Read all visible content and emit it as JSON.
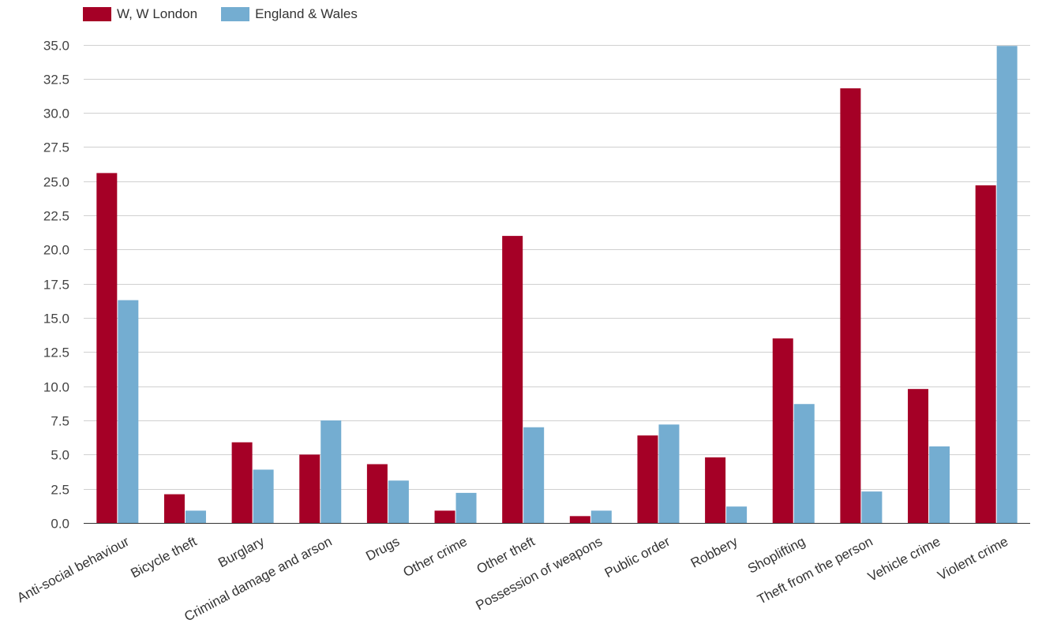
{
  "chart_data": {
    "type": "bar",
    "categories": [
      "Anti-social behaviour",
      "Bicycle theft",
      "Burglary",
      "Criminal damage and arson",
      "Drugs",
      "Other crime",
      "Other theft",
      "Possession of weapons",
      "Public order",
      "Robbery",
      "Shoplifting",
      "Theft from the person",
      "Vehicle crime",
      "Violent crime"
    ],
    "series": [
      {
        "name": "W, W London",
        "color": "#a50026",
        "values": [
          25.6,
          2.1,
          5.9,
          5.0,
          4.3,
          0.9,
          21.0,
          0.5,
          6.4,
          4.8,
          13.5,
          31.8,
          9.8,
          24.7
        ]
      },
      {
        "name": "England & Wales",
        "color": "#74add1",
        "values": [
          16.3,
          0.9,
          3.9,
          7.5,
          3.1,
          2.2,
          7.0,
          0.9,
          7.2,
          1.2,
          8.7,
          2.3,
          5.6,
          34.9
        ]
      }
    ],
    "yticks": [
      "0.0",
      "2.5",
      "5.0",
      "7.5",
      "10.0",
      "12.5",
      "15.0",
      "17.5",
      "20.0",
      "22.5",
      "25.0",
      "27.5",
      "30.0",
      "32.5",
      "35.0"
    ],
    "ylim": [
      0,
      35
    ],
    "grid": true,
    "legend_position": "top-left",
    "title": "",
    "xlabel": "",
    "ylabel": ""
  }
}
